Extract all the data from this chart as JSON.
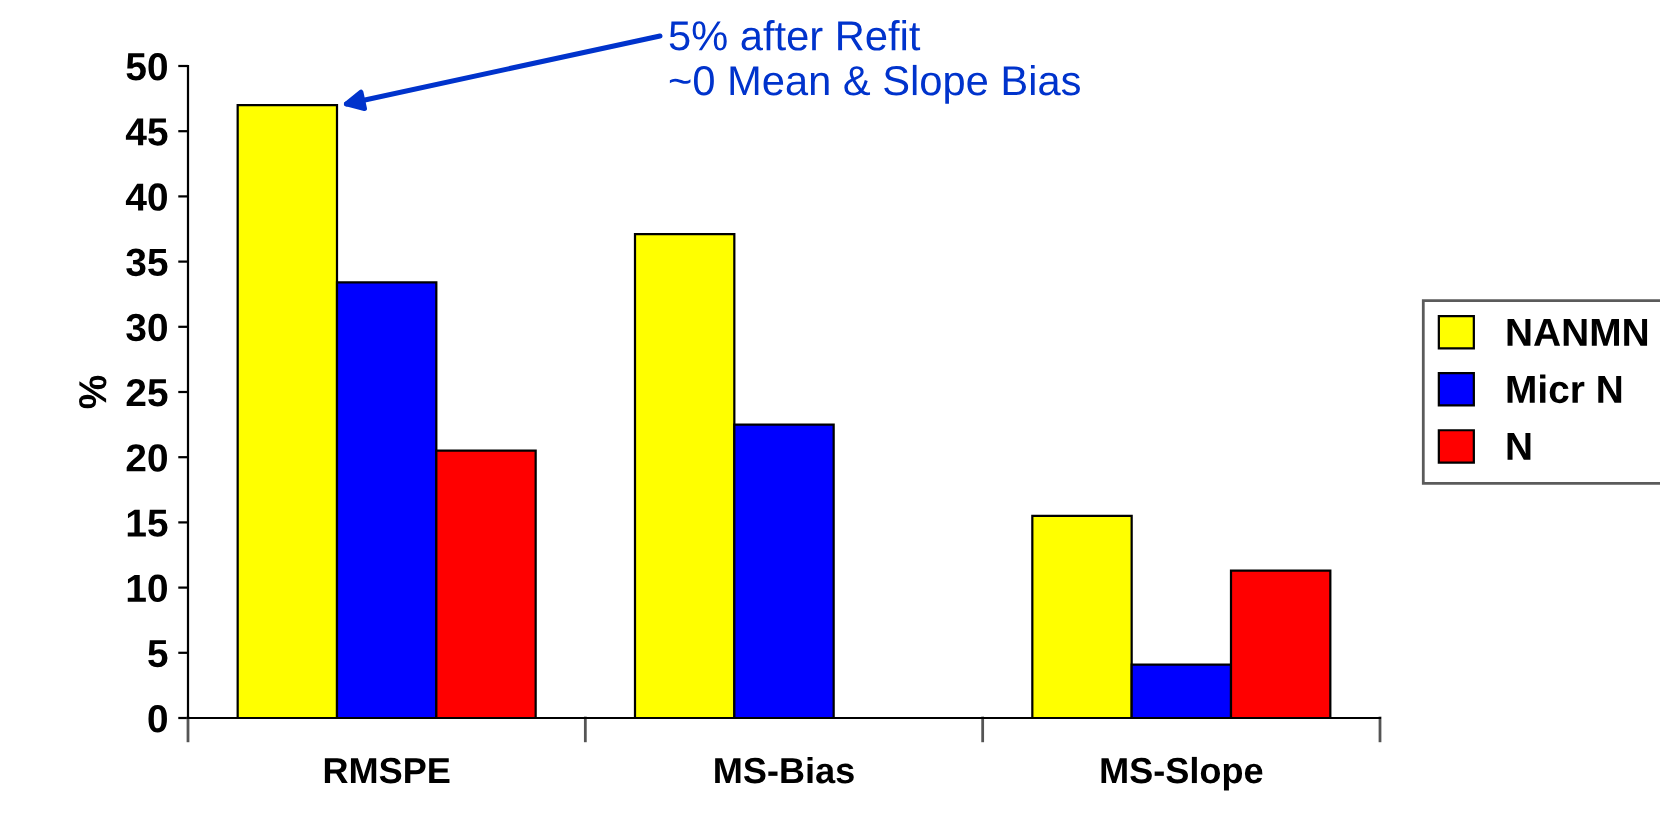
{
  "chart_data": {
    "type": "bar",
    "ylabel": "%",
    "categories": [
      "RMSPE",
      "MS-Bias",
      "MS-Slope"
    ],
    "series": [
      {
        "name": "NANMN",
        "color": "#ffff00",
        "values": [
          47,
          37.1,
          15.5
        ]
      },
      {
        "name": "Micr N",
        "color": "#0000ff",
        "values": [
          33.4,
          22.5,
          4.1
        ]
      },
      {
        "name": "N",
        "color": "#ff0000",
        "values": [
          20.5,
          null,
          11.3
        ]
      }
    ],
    "ylim": [
      0,
      50
    ],
    "yticks": [
      0,
      5,
      10,
      15,
      20,
      25,
      30,
      35,
      40,
      45,
      50
    ],
    "grid": false,
    "legend": "right",
    "annotations": [
      "5% after Refit\n~0 Mean & Slope Bias"
    ]
  }
}
